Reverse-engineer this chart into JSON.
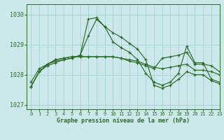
{
  "title": "Graphe pression niveau de la mer (hPa)",
  "background_color": "#cce8ea",
  "grid_color": "#aad4d8",
  "line_color": "#2d6b2d",
  "xlim": [
    -0.5,
    23
  ],
  "ylim": [
    1026.85,
    1030.35
  ],
  "yticks": [
    1027,
    1028,
    1029,
    1030
  ],
  "xticks": [
    0,
    1,
    2,
    3,
    4,
    5,
    6,
    7,
    8,
    9,
    10,
    11,
    12,
    13,
    14,
    15,
    16,
    17,
    18,
    19,
    20,
    21,
    22,
    23
  ],
  "series": [
    [
      1027.75,
      1028.2,
      1028.35,
      1028.45,
      1028.5,
      1028.55,
      1028.65,
      1029.3,
      1029.85,
      1029.6,
      1029.1,
      1028.9,
      1028.75,
      1028.5,
      1028.05,
      1027.75,
      1027.65,
      1027.75,
      1028.05,
      1028.95,
      1028.4,
      1028.4,
      1027.85,
      1027.75
    ],
    [
      1027.6,
      1028.1,
      1028.3,
      1028.4,
      1028.5,
      1028.55,
      1028.65,
      1029.85,
      1029.9,
      1029.6,
      1029.4,
      1029.25,
      1029.05,
      1028.85,
      1028.5,
      1027.65,
      1027.55,
      1027.65,
      1027.85,
      1028.1,
      1028.0,
      1028.0,
      1027.8,
      1027.7
    ],
    [
      1027.6,
      1028.1,
      1028.35,
      1028.5,
      1028.55,
      1028.6,
      1028.6,
      1028.6,
      1028.6,
      1028.6,
      1028.6,
      1028.55,
      1028.5,
      1028.45,
      1028.35,
      1028.25,
      1028.2,
      1028.25,
      1028.3,
      1028.35,
      1028.15,
      1028.15,
      1028.1,
      1028.0
    ],
    [
      1027.6,
      1028.1,
      1028.35,
      1028.5,
      1028.55,
      1028.6,
      1028.6,
      1028.6,
      1028.6,
      1028.6,
      1028.6,
      1028.55,
      1028.45,
      1028.4,
      1028.3,
      1028.2,
      1028.55,
      1028.6,
      1028.65,
      1028.75,
      1028.35,
      1028.35,
      1028.3,
      1028.1
    ]
  ]
}
